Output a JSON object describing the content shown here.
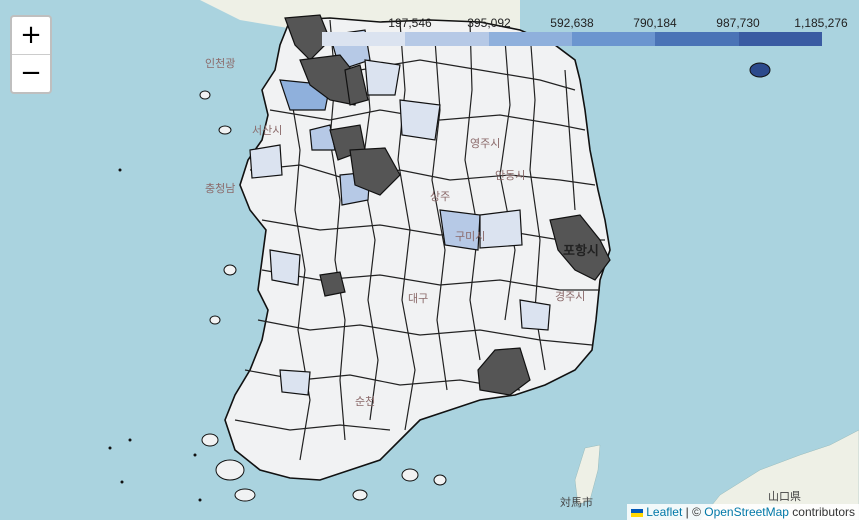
{
  "colors": {
    "sea": "#aad3df",
    "land": "#f2f2f2",
    "boundary": "#111111",
    "missing": "#555555",
    "scale": [
      "#dbe3f0",
      "#b6c9e6",
      "#8fb0dc",
      "#6b95cf",
      "#4a73b6",
      "#3a5ba2"
    ]
  },
  "zoom": {
    "in_label": "+",
    "out_label": "−"
  },
  "legend": {
    "ticks": [
      "197,546",
      "395,092",
      "592,638",
      "790,184",
      "987,730",
      "1,185,276"
    ]
  },
  "places": {
    "incheon": "인천광",
    "pohang": "포항시",
    "sangju": "상주",
    "gumi": "구미시",
    "andong": "안동시",
    "daegu": "대구",
    "gyeongju": "경주시",
    "suncheon": "순천",
    "tsushima": "対馬市",
    "yamaguchi": "山口県",
    "chungnam": "충청남",
    "seosan": "서산시",
    "yeongju": "영주시"
  },
  "attribution": {
    "leaflet": "Leaflet",
    "separator": " | © ",
    "osm": "OpenStreetMap",
    "suffix": " contributors"
  }
}
